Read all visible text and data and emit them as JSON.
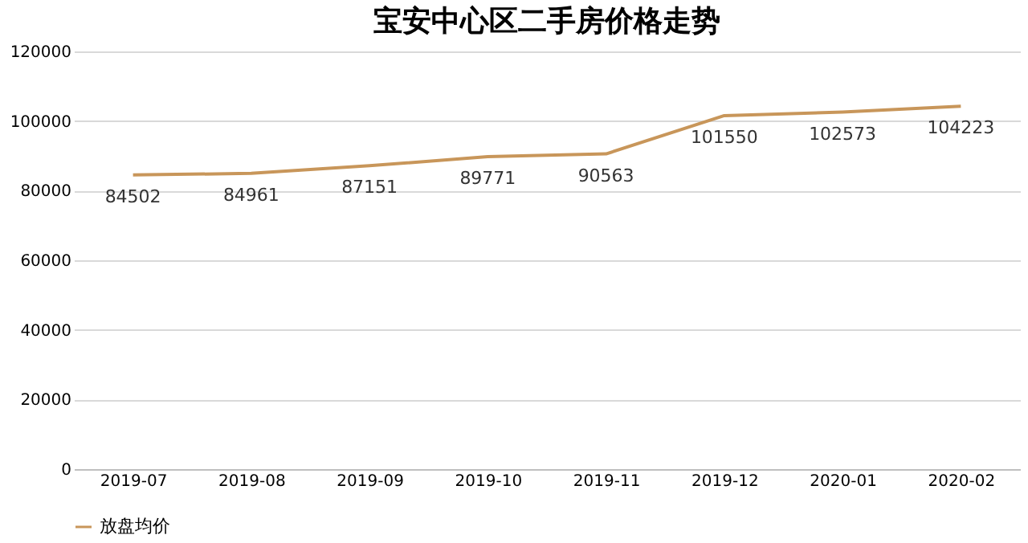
{
  "chart_data": {
    "type": "line",
    "title": "宝安中心区二手房价格走势",
    "categories": [
      "2019-07",
      "2019-08",
      "2019-09",
      "2019-10",
      "2019-11",
      "2019-12",
      "2020-01",
      "2020-02"
    ],
    "series": [
      {
        "name": "放盘均价",
        "color": "#c8965a",
        "values": [
          84502,
          84961,
          87151,
          89771,
          90563,
          101550,
          102573,
          104223
        ]
      }
    ],
    "ylim": [
      0,
      120000
    ],
    "yticks": [
      0,
      20000,
      40000,
      60000,
      80000,
      100000,
      120000
    ],
    "grid": "y",
    "legend": "bottom",
    "data_labels": true,
    "marker": "none",
    "line_style": "solid"
  }
}
